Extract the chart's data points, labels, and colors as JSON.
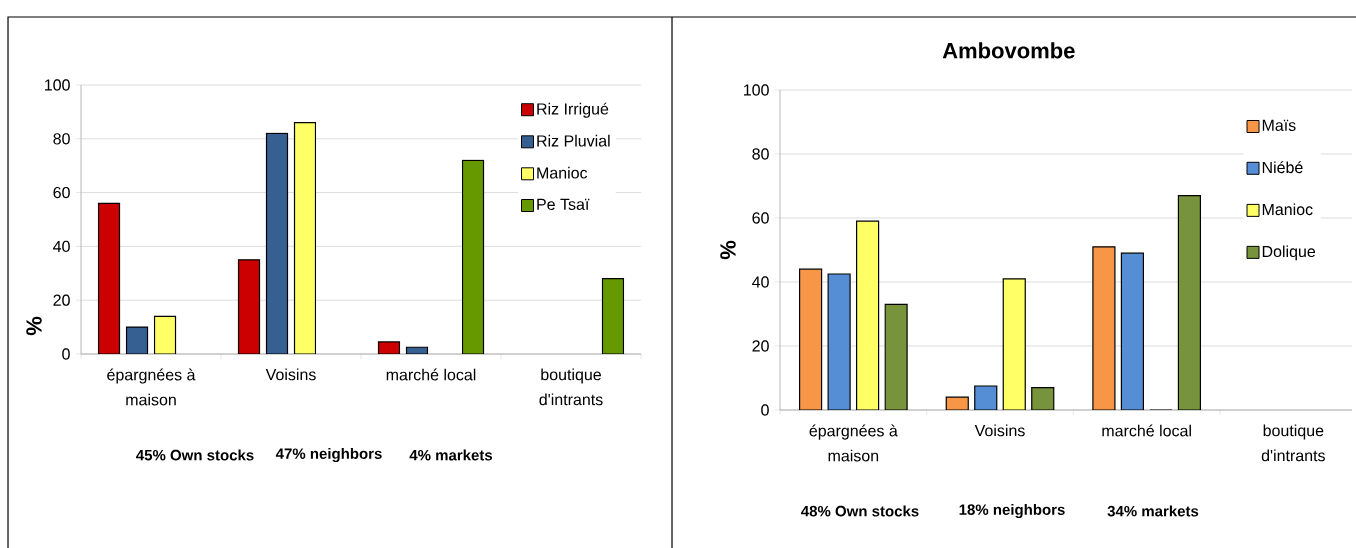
{
  "chart_data": [
    {
      "type": "bar",
      "ylabel": "%",
      "categories": [
        "épargnées à maison",
        "Voisins",
        "marché local",
        "boutique d'intrants"
      ],
      "series": [
        {
          "name": "Riz Irrigué",
          "color": "#cc0000",
          "values": [
            56,
            35,
            4.5,
            null
          ]
        },
        {
          "name": "Riz Pluvial",
          "color": "#376092",
          "values": [
            10,
            82,
            2.5,
            null
          ]
        },
        {
          "name": "Manioc",
          "color": "#ffff66",
          "values": [
            14,
            86,
            null,
            null
          ]
        },
        {
          "name": "Pe Tsaï",
          "color": "#669900",
          "values": [
            null,
            null,
            72,
            28
          ]
        }
      ],
      "ylim": [
        0,
        100
      ],
      "yticks": [
        0,
        20,
        40,
        60,
        80,
        100
      ],
      "grid": "y",
      "legend": "top right",
      "annotations": [
        "45% Own stocks",
        "47% neighbors",
        "4% markets"
      ]
    },
    {
      "type": "bar",
      "title": "Ambovombe",
      "ylabel": "%",
      "categories": [
        "épargnées à maison",
        "Voisins",
        "marché local",
        "boutique d'intrants"
      ],
      "series": [
        {
          "name": "Maïs",
          "color": "#f79646",
          "values": [
            44,
            4,
            51,
            null
          ]
        },
        {
          "name": "Niébé",
          "color": "#558ed5",
          "values": [
            42.5,
            7.5,
            49,
            null
          ]
        },
        {
          "name": "Manioc",
          "color": "#ffff66",
          "values": [
            59,
            41,
            0,
            null
          ]
        },
        {
          "name": "Dolique",
          "color": "#77933c",
          "values": [
            33,
            7,
            67,
            null
          ]
        }
      ],
      "ylim": [
        0,
        100
      ],
      "yticks": [
        0,
        20,
        40,
        60,
        80,
        100
      ],
      "grid": "y",
      "legend": "top right",
      "annotations": [
        "48% Own stocks",
        "18% neighbors",
        "34% markets"
      ]
    }
  ]
}
